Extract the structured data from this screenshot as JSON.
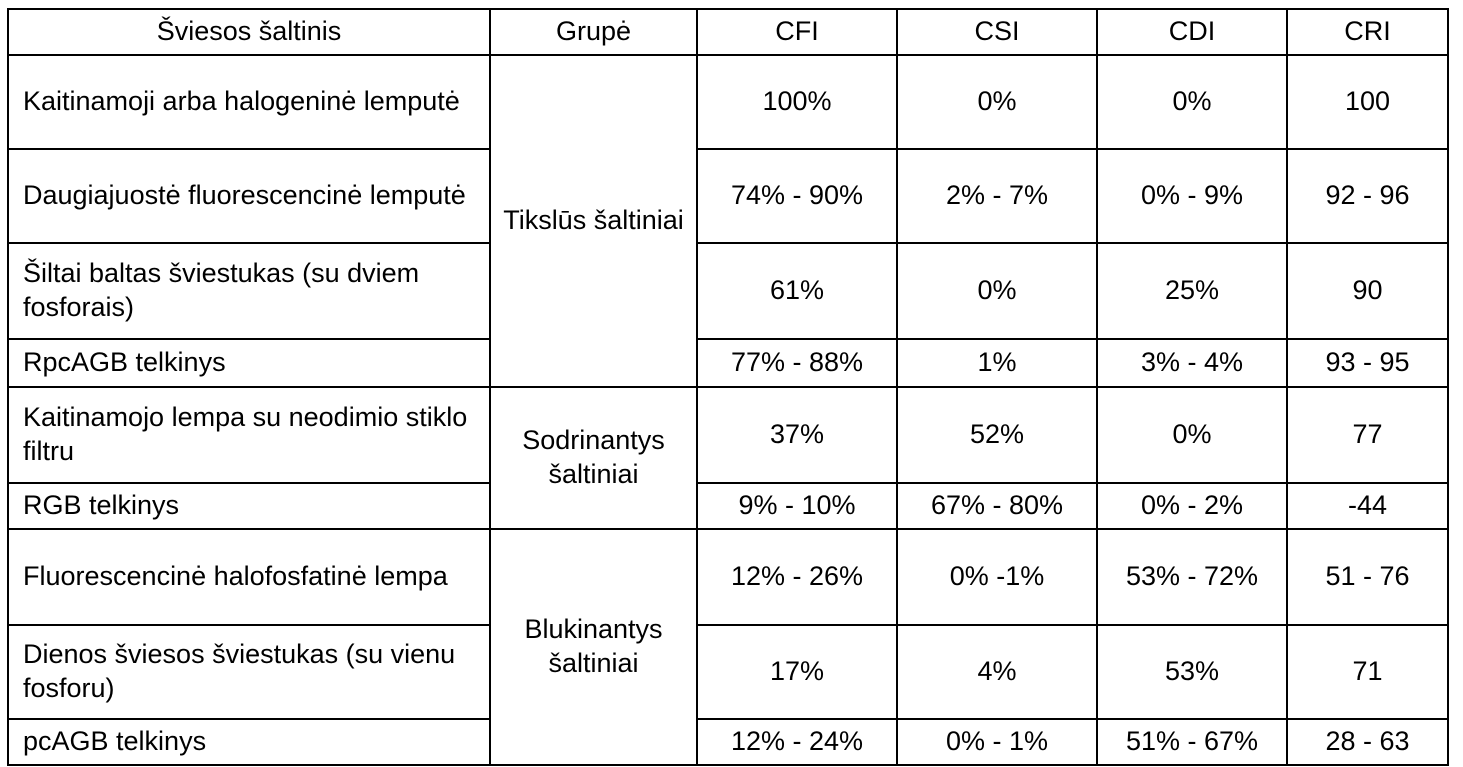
{
  "table": {
    "headers": [
      "Šviesos šaltinis",
      "Grupė",
      "CFI",
      "CSI",
      "CDI",
      "CRI"
    ],
    "rows": [
      {
        "source": "Kaitinamoji arba halogeninė lemputė",
        "group": "Tikslūs šaltiniai",
        "cfi": "100%",
        "csi": "0%",
        "cdi": "0%",
        "cri": "100"
      },
      {
        "source": "Daugiajuostė fluorescencinė lemputė",
        "group": "Tikslūs šaltiniai",
        "cfi": "74% - 90%",
        "csi": "2% - 7%",
        "cdi": "0% - 9%",
        "cri": "92 - 96"
      },
      {
        "source": "Šiltai baltas šviestukas (su dviem fosforais)",
        "group": "Tikslūs šaltiniai",
        "cfi": "61%",
        "csi": "0%",
        "cdi": "25%",
        "cri": "90"
      },
      {
        "source": "RpcAGB telkinys",
        "group": "Tikslūs šaltiniai",
        "cfi": "77% - 88%",
        "csi": "1%",
        "cdi": "3% - 4%",
        "cri": "93 - 95"
      },
      {
        "source": "Kaitinamojo lempa su neodimio stiklo filtru",
        "group": "Sodrinantys šaltiniai",
        "cfi": "37%",
        "csi": "52%",
        "cdi": "0%",
        "cri": "77"
      },
      {
        "source": "RGB telkinys",
        "group": "Sodrinantys šaltiniai",
        "cfi": "9% - 10%",
        "csi": "67% - 80%",
        "cdi": "0% - 2%",
        "cri": "-44"
      },
      {
        "source": "Fluorescencinė halofosfatinė lempa",
        "group": "Blukinantys šaltiniai",
        "cfi": "12% - 26%",
        "csi": "0% -1%",
        "cdi": "53% - 72%",
        "cri": "51 - 76"
      },
      {
        "source": "Dienos šviesos šviestukas (su vienu fosforu)",
        "group": "Blukinantys šaltiniai",
        "cfi": "17%",
        "csi": "4%",
        "cdi": "53%",
        "cri": "71"
      },
      {
        "source": "pcAGB telkinys",
        "group": "Blukinantys šaltiniai",
        "cfi": "12% - 24%",
        "csi": "0% - 1%",
        "cdi": "51% - 67%",
        "cri": "28 - 63"
      }
    ]
  }
}
